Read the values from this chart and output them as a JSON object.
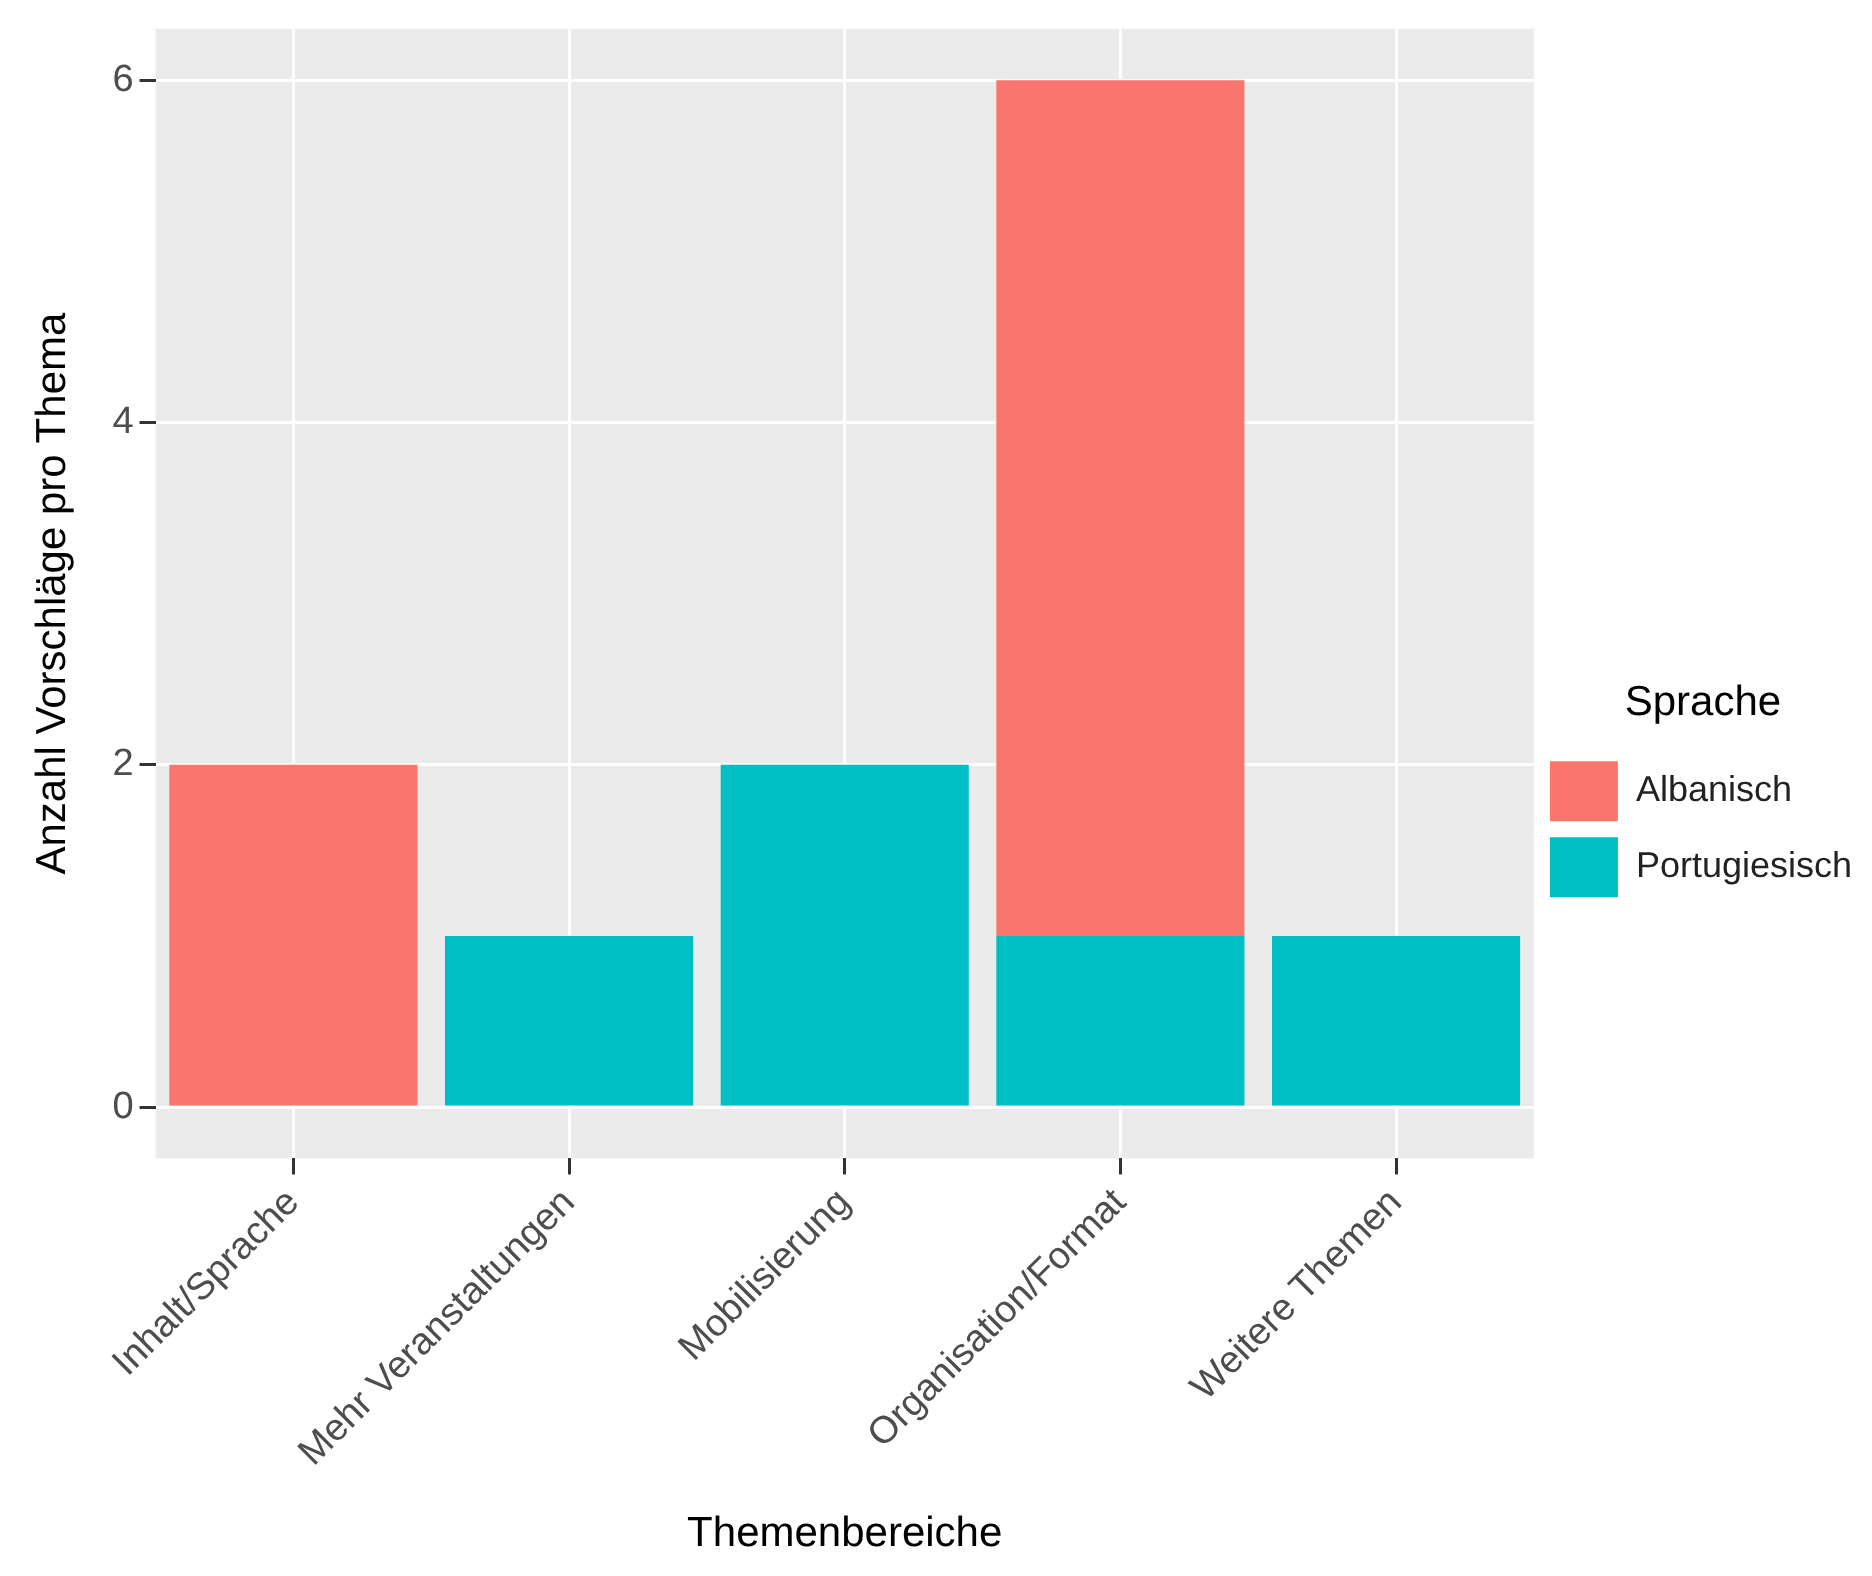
{
  "chart_data": {
    "type": "bar",
    "stacked": true,
    "xlabel": "Themenbereiche",
    "ylabel": "Anzahl Vorschläge pro Thema",
    "legend_title": "Sprache",
    "legend": "right",
    "categories": [
      "Inhalt/Sprache",
      "Mehr Veranstaltungen",
      "Mobilisierung",
      "Organisation/Format",
      "Weitere Themen"
    ],
    "series": [
      {
        "name": "Portugiesisch",
        "color": "#00bfc4",
        "values": [
          0,
          1,
          2,
          1,
          1
        ]
      },
      {
        "name": "Albanisch",
        "color": "#f8766d",
        "values": [
          2,
          0,
          0,
          5,
          0
        ]
      }
    ],
    "ylim": [
      -0.3,
      6.3
    ],
    "yticks": [
      0,
      2,
      4,
      6
    ],
    "grid": true
  }
}
